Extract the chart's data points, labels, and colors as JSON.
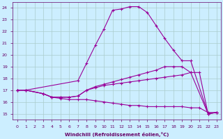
{
  "xlabel": "Windchill (Refroidissement éolien,°C)",
  "background_color": "#cceeff",
  "grid_color": "#aacccc",
  "line_color": "#990099",
  "ylim": [
    14.5,
    24.5
  ],
  "xlim": [
    -0.5,
    23.5
  ],
  "yticks": [
    15,
    16,
    17,
    18,
    19,
    20,
    21,
    22,
    23,
    24
  ],
  "xticks": [
    0,
    1,
    2,
    3,
    4,
    5,
    6,
    7,
    8,
    9,
    10,
    11,
    12,
    13,
    14,
    15,
    16,
    17,
    18,
    19,
    20,
    21,
    22,
    23
  ],
  "series1_x": [
    0,
    1,
    7,
    8,
    9,
    10,
    11,
    12,
    13,
    14,
    15,
    16,
    17,
    18,
    19,
    20,
    22,
    23
  ],
  "series1_y": [
    17.0,
    17.0,
    17.8,
    19.3,
    20.8,
    22.2,
    23.8,
    23.9,
    24.1,
    24.1,
    23.6,
    22.5,
    21.4,
    20.4,
    19.5,
    19.5,
    15.0,
    15.1
  ],
  "series2_x": [
    0,
    1,
    3,
    4,
    5,
    6,
    7,
    8,
    9,
    10,
    11,
    12,
    13,
    14,
    15,
    16,
    17,
    18,
    19,
    20,
    22,
    23
  ],
  "series2_y": [
    17.0,
    17.0,
    16.7,
    16.4,
    16.4,
    16.4,
    16.5,
    17.0,
    17.3,
    17.5,
    17.7,
    17.9,
    18.1,
    18.3,
    18.5,
    18.7,
    19.0,
    19.0,
    19.0,
    18.5,
    15.0,
    15.1
  ],
  "series3_x": [
    0,
    1,
    3,
    4,
    5,
    6,
    7,
    8,
    9,
    10,
    11,
    12,
    13,
    14,
    15,
    16,
    17,
    18,
    19,
    20,
    21,
    22,
    23
  ],
  "series3_y": [
    17.0,
    17.0,
    16.7,
    16.4,
    16.4,
    16.4,
    16.5,
    17.0,
    17.2,
    17.4,
    17.5,
    17.6,
    17.7,
    17.8,
    17.9,
    18.0,
    18.1,
    18.2,
    18.3,
    18.5,
    18.5,
    15.0,
    15.1
  ],
  "series4_x": [
    0,
    1,
    3,
    4,
    5,
    6,
    7,
    8,
    9,
    10,
    11,
    12,
    13,
    14,
    15,
    16,
    17,
    18,
    19,
    20,
    21,
    22,
    23
  ],
  "series4_y": [
    17.0,
    17.0,
    16.7,
    16.4,
    16.3,
    16.2,
    16.2,
    16.2,
    16.1,
    16.0,
    15.9,
    15.8,
    15.7,
    15.7,
    15.6,
    15.6,
    15.6,
    15.6,
    15.6,
    15.5,
    15.5,
    15.1,
    15.1
  ]
}
